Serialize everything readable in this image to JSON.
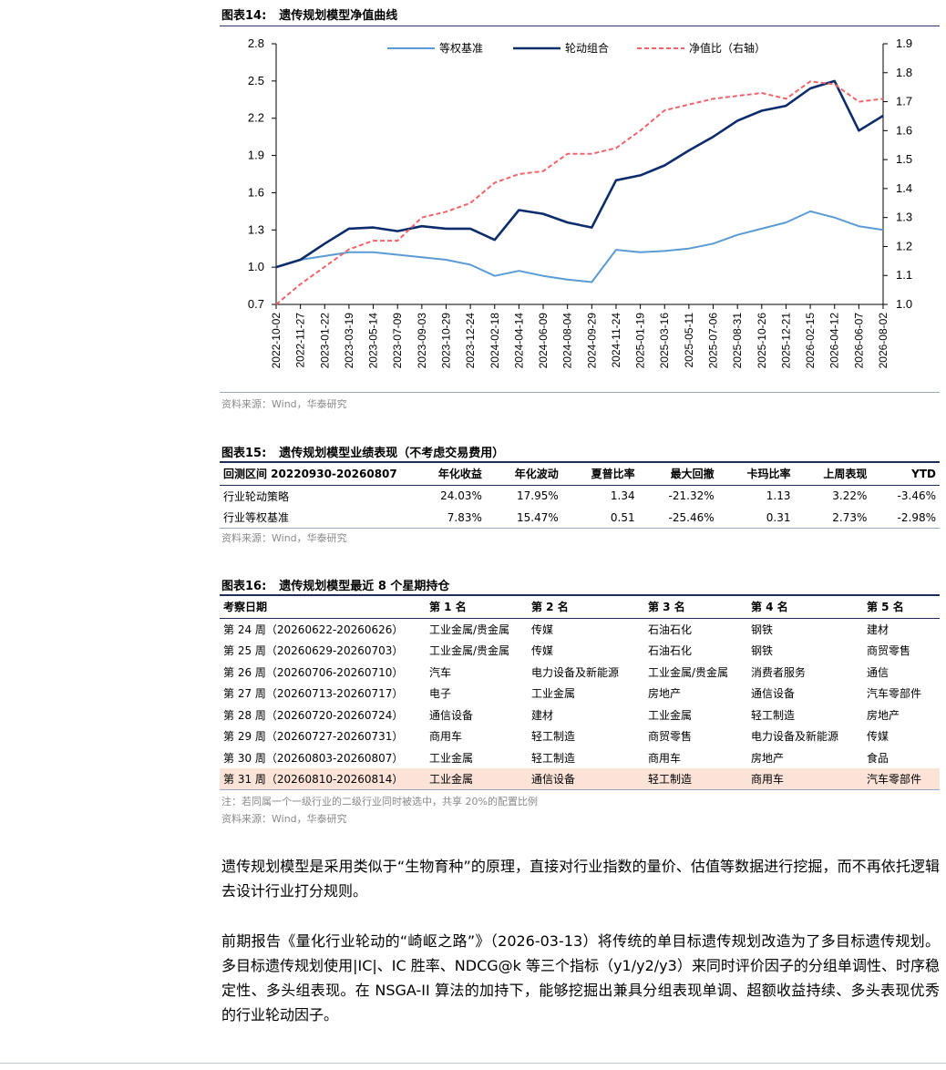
{
  "fig14": {
    "num": "图表14:",
    "title": "遗传规划模型净值曲线",
    "source": "资料来源：Wind，华泰研究"
  },
  "chart_data": {
    "type": "line",
    "y_left_lim": [
      0.7,
      2.8
    ],
    "y_left_ticks": [
      "0.7",
      "1.0",
      "1.3",
      "1.6",
      "1.9",
      "2.2",
      "2.5",
      "2.8"
    ],
    "y_right_lim": [
      1.0,
      1.9
    ],
    "y_right_ticks": [
      "1.0",
      "1.1",
      "1.2",
      "1.3",
      "1.4",
      "1.5",
      "1.6",
      "1.7",
      "1.8",
      "1.9"
    ],
    "x_ticks": [
      "2022-10-02",
      "2022-11-27",
      "2023-01-22",
      "2023-03-19",
      "2023-05-14",
      "2023-07-09",
      "2023-09-03",
      "2023-10-29",
      "2023-12-24",
      "2024-02-18",
      "2024-04-14",
      "2024-06-09",
      "2024-08-04",
      "2024-09-29",
      "2024-11-24",
      "2025-01-19",
      "2025-03-16",
      "2025-05-11",
      "2025-07-06",
      "2025-08-31",
      "2025-10-26",
      "2025-12-21",
      "2026-02-15",
      "2026-04-12",
      "2026-06-07",
      "2026-08-02"
    ],
    "legend_position": "top",
    "grid": false,
    "series": [
      {
        "name": "等权基准",
        "axis": "left",
        "color": "#5b9bd5",
        "style": "solid",
        "values": [
          1.0,
          1.06,
          1.09,
          1.12,
          1.12,
          1.1,
          1.08,
          1.06,
          1.02,
          0.93,
          0.97,
          0.93,
          0.9,
          0.88,
          1.14,
          1.12,
          1.13,
          1.15,
          1.19,
          1.26,
          1.31,
          1.36,
          1.45,
          1.4,
          1.33,
          1.3
        ]
      },
      {
        "name": "轮动组合",
        "axis": "left",
        "color": "#0d2c6c",
        "style": "solid",
        "values": [
          1.0,
          1.06,
          1.19,
          1.31,
          1.32,
          1.29,
          1.33,
          1.31,
          1.31,
          1.22,
          1.46,
          1.43,
          1.36,
          1.32,
          1.7,
          1.74,
          1.82,
          1.94,
          2.05,
          2.18,
          2.26,
          2.3,
          2.44,
          2.5,
          2.1,
          2.22
        ]
      },
      {
        "name": "净值比（右轴）",
        "axis": "right",
        "color": "#f0636a",
        "style": "dashed",
        "values": [
          1.0,
          1.07,
          1.13,
          1.19,
          1.22,
          1.22,
          1.3,
          1.32,
          1.35,
          1.42,
          1.45,
          1.46,
          1.52,
          1.52,
          1.54,
          1.6,
          1.67,
          1.69,
          1.71,
          1.72,
          1.73,
          1.71,
          1.77,
          1.76,
          1.7,
          1.71
        ]
      }
    ]
  },
  "fig15": {
    "num": "图表15:",
    "title": "遗传规划模型业绩表现（不考虑交易费用）",
    "source": "资料来源：Wind，华泰研究",
    "headers": [
      "回测区间 20220930-20260807",
      "年化收益",
      "年化波动",
      "夏普比率",
      "最大回撤",
      "卡玛比率",
      "上周表现",
      "YTD"
    ],
    "rows": [
      [
        "行业轮动策略",
        "24.03%",
        "17.95%",
        "1.34",
        "-21.32%",
        "1.13",
        "3.22%",
        "-3.46%"
      ],
      [
        "行业等权基准",
        "7.83%",
        "15.47%",
        "0.51",
        "-25.46%",
        "0.31",
        "2.73%",
        "-2.98%"
      ]
    ]
  },
  "fig16": {
    "num": "图表16:",
    "title": "遗传规划模型最近 8 个星期持仓",
    "headers": [
      "考察日期",
      "第 1 名",
      "第 2 名",
      "第 3 名",
      "第 4 名",
      "第 5 名"
    ],
    "rows": [
      [
        "第 24 周（20260622-20260626）",
        "工业金属/贵金属",
        "传媒",
        "石油石化",
        "钢铁",
        "建材"
      ],
      [
        "第 25 周（20260629-20260703）",
        "工业金属/贵金属",
        "传媒",
        "石油石化",
        "钢铁",
        "商贸零售"
      ],
      [
        "第 26 周（20260706-20260710）",
        "汽车",
        "电力设备及新能源",
        "工业金属/贵金属",
        "消费者服务",
        "通信"
      ],
      [
        "第 27 周（20260713-20260717）",
        "电子",
        "工业金属",
        "房地产",
        "通信设备",
        "汽车零部件"
      ],
      [
        "第 28 周（20260720-20260724）",
        "通信设备",
        "建材",
        "工业金属",
        "轻工制造",
        "房地产"
      ],
      [
        "第 29 周（20260727-20260731）",
        "商用车",
        "轻工制造",
        "商贸零售",
        "电力设备及新能源",
        "传媒"
      ],
      [
        "第 30 周（20260803-20260807）",
        "工业金属",
        "轻工制造",
        "商用车",
        "房地产",
        "食品"
      ],
      [
        "第 31 周（20260810-20260814）",
        "工业金属",
        "通信设备",
        "轻工制造",
        "商用车",
        "汽车零部件"
      ]
    ],
    "note": "注：若同属一个一级行业的二级行业同时被选中，共享 20%的配置比例",
    "source": "资料来源：Wind，华泰研究"
  },
  "body": {
    "p1": "遗传规划模型是采用类似于“生物育种”的原理，直接对行业指数的量价、估值等数据进行挖掘，而不再依托逻辑去设计行业打分规则。",
    "p2": "前期报告《量化行业轮动的“崎岖之路”》（2026-03-13）将传统的单目标遗传规划改造为了多目标遗传规划。多目标遗传规划使用|IC|、IC 胜率、NDCG@k 等三个指标（y1/y2/y3）来同时评价因子的分组单调性、时序稳定性、多头组表现。在 NSGA-II 算法的加持下，能够挖掘出兼具分组表现单调、超额收益持续、多头表现优秀的行业轮动因子。"
  }
}
